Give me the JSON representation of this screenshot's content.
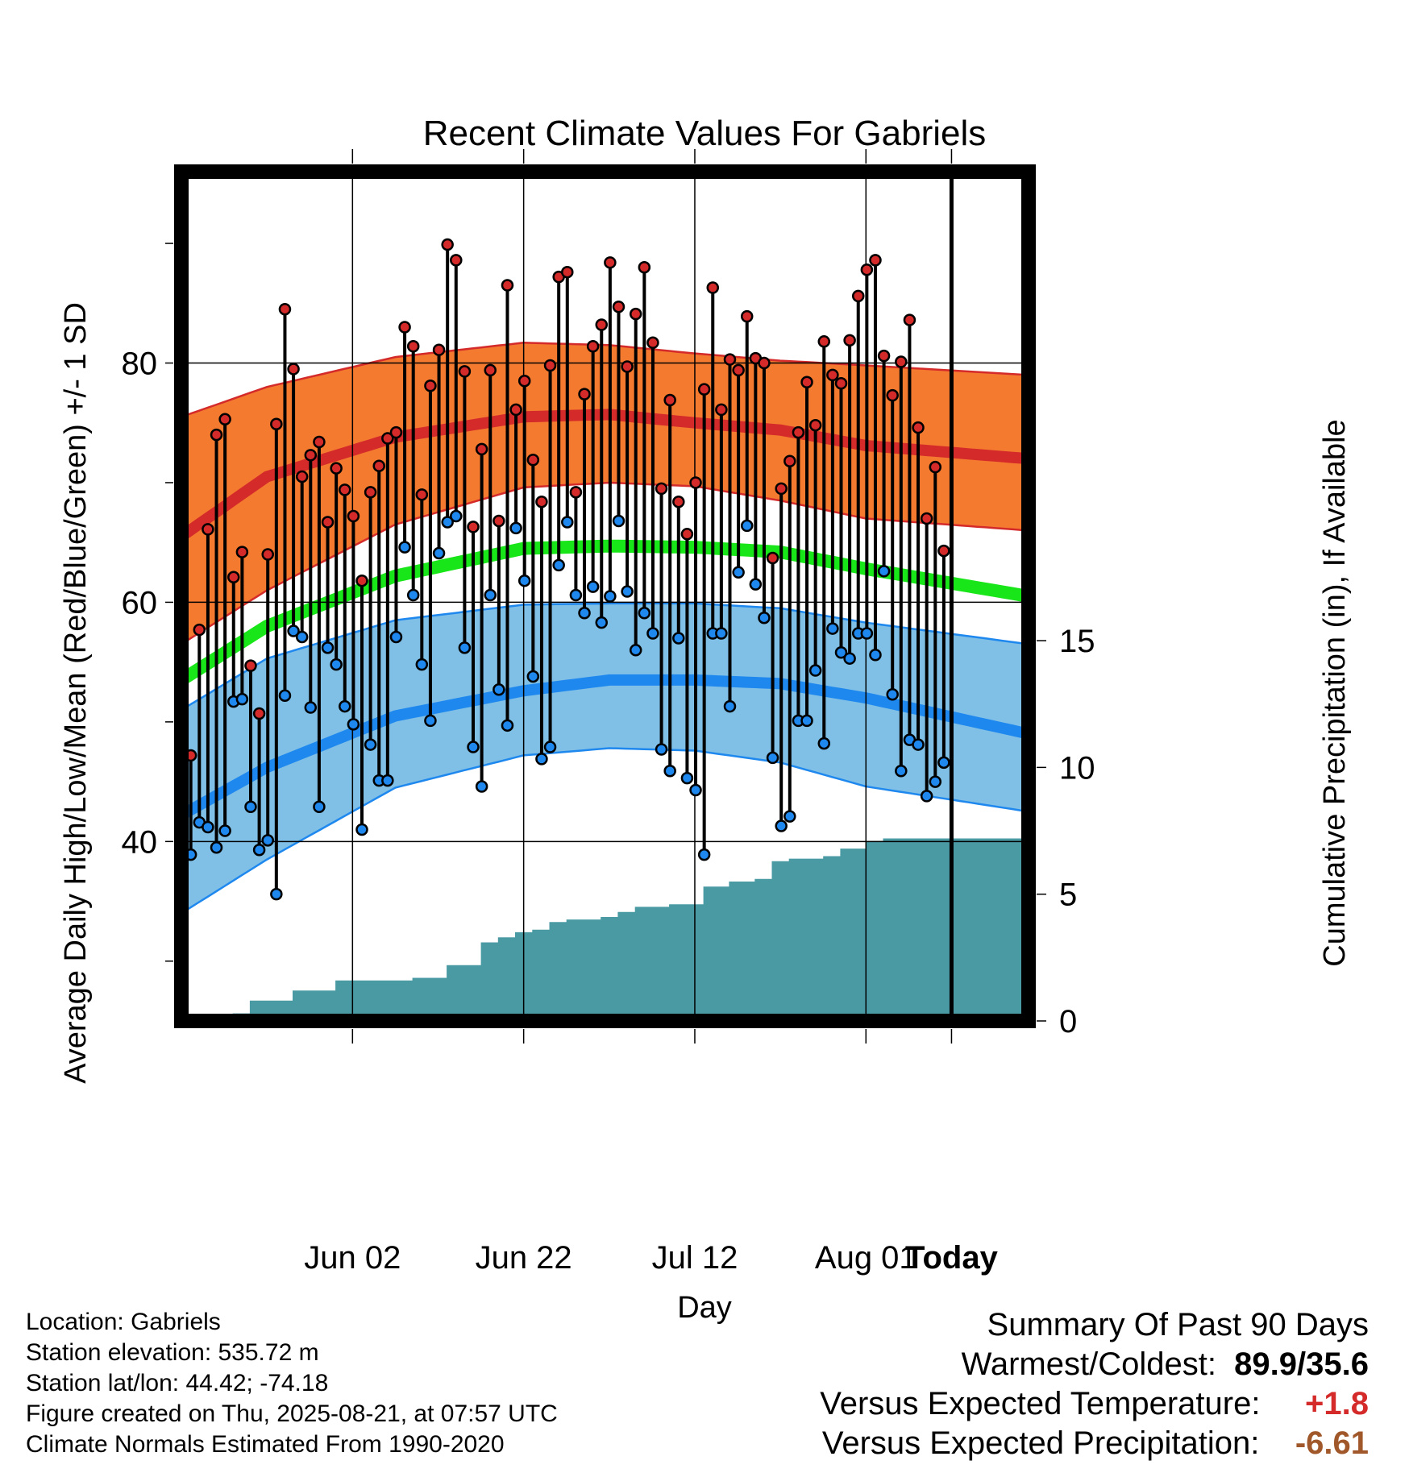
{
  "chart_data": {
    "type": "line",
    "title": "Recent Climate Values For Gabriels",
    "xlabel": "Day",
    "ylabel_left": "Average Daily High/Low/Mean (Red/Blue/Green) +/- 1 SD",
    "ylabel_right": "Cumulative Precipitation (in), If Available",
    "x_tick_labels": [
      "Jun 02",
      "Jun 22",
      "Jul 12",
      "Aug 01",
      "Today"
    ],
    "y_left_ticks": [
      40,
      60,
      80
    ],
    "y_left_range": [
      25,
      96
    ],
    "y_right_ticks": [
      0,
      5,
      10,
      15
    ],
    "y_right_range": [
      0,
      33.5
    ],
    "x_range_days": [
      -90,
      9
    ],
    "window_label": "90 Days",
    "colors": {
      "high_band": "#f47a30",
      "high_mean": "#d42a2a",
      "low_band": "#80c0e6",
      "low_mean": "#1e88ef",
      "mean": "#18e618",
      "precip": "#4a9aa4",
      "high_dot": "#d42a2a",
      "low_dot": "#1e88ef"
    },
    "normal_high": [
      65.5,
      70.5,
      73.8,
      75.5,
      75.7,
      75.0,
      74.4,
      73.1,
      72.0
    ],
    "normal_high_upper": [
      75.5,
      78.0,
      80.5,
      81.7,
      81.5,
      80.8,
      80.2,
      79.8,
      79.0
    ],
    "normal_high_lower": [
      56.5,
      61.0,
      66.5,
      69.6,
      70.0,
      69.7,
      68.5,
      67.0,
      66.0
    ],
    "normal_low": [
      42.2,
      46.2,
      50.5,
      52.6,
      53.5,
      53.5,
      53.2,
      52.0,
      49.0
    ],
    "normal_low_upper": [
      51.0,
      55.3,
      58.5,
      59.8,
      59.9,
      59.9,
      59.5,
      58.3,
      56.5
    ],
    "normal_low_lower": [
      34.0,
      38.5,
      44.5,
      47.2,
      47.8,
      47.6,
      46.6,
      44.6,
      42.5
    ],
    "normal_mean": [
      53.5,
      58.0,
      62.2,
      64.5,
      64.7,
      64.6,
      64.2,
      62.8,
      60.5
    ],
    "normal_x": [
      -90,
      -80,
      -65,
      -50,
      -40,
      -30,
      -20,
      -10,
      9
    ],
    "daily_high": [
      49.4,
      47.2,
      57.7,
      66.1,
      74.0,
      75.3,
      62.1,
      64.2,
      54.7,
      50.7,
      64.0,
      74.9,
      84.5,
      79.5,
      70.5,
      72.3,
      73.4,
      66.7,
      71.2,
      69.4,
      67.2,
      61.8,
      69.2,
      71.4,
      73.7,
      74.2,
      83.0,
      81.4,
      69.0,
      78.1,
      81.1,
      89.9,
      88.6,
      79.3,
      66.3,
      72.8,
      79.4,
      66.8,
      86.5,
      76.1,
      78.5,
      71.9,
      68.4,
      79.8,
      87.2,
      87.6,
      69.2,
      77.4,
      81.4,
      83.2,
      88.4,
      84.7,
      79.7,
      84.1,
      88.0,
      81.7,
      69.5,
      76.9,
      68.4,
      65.7,
      70.0,
      77.8,
      86.3,
      76.1,
      80.3,
      79.4,
      83.9,
      80.4,
      80.0,
      63.7,
      69.5,
      71.8,
      74.2,
      78.4,
      74.8,
      81.8,
      79.0,
      78.3,
      81.9,
      85.6,
      87.8,
      88.6,
      80.6,
      77.3,
      80.1,
      83.6,
      74.6,
      67.0,
      71.3,
      64.3
    ],
    "daily_low": [
      38.5,
      38.9,
      41.6,
      41.2,
      39.5,
      40.9,
      51.7,
      51.9,
      42.9,
      39.3,
      40.1,
      35.6,
      52.2,
      57.6,
      57.1,
      51.2,
      42.9,
      56.2,
      54.8,
      51.3,
      49.8,
      41.0,
      48.1,
      45.1,
      45.1,
      57.1,
      64.6,
      60.6,
      54.8,
      50.1,
      64.1,
      66.7,
      67.2,
      56.2,
      47.9,
      44.6,
      60.6,
      52.7,
      49.7,
      66.2,
      61.8,
      53.8,
      46.9,
      47.9,
      63.1,
      66.7,
      60.6,
      59.1,
      61.3,
      58.3,
      60.5,
      66.8,
      60.9,
      56.0,
      59.1,
      57.4,
      47.7,
      45.9,
      57.0,
      45.3,
      44.3,
      38.9,
      57.4,
      57.4,
      51.3,
      62.5,
      66.4,
      61.5,
      58.7,
      47.0,
      41.3,
      42.1,
      50.1,
      50.1,
      54.3,
      48.2,
      57.8,
      55.8,
      55.3,
      57.4,
      57.4,
      55.6,
      62.6,
      52.3,
      45.9,
      48.5,
      48.1,
      43.8,
      45.0,
      46.6
    ],
    "cumulative_precip_x": [
      -90,
      -86,
      -84,
      -82,
      -80,
      -77,
      -74,
      -72,
      -67,
      -63,
      -59,
      -55,
      -53,
      -51,
      -49,
      -47,
      -45,
      -43,
      -41,
      -39,
      -37,
      -33,
      -29,
      -26,
      -23,
      -21,
      -19,
      -17,
      -15,
      -13,
      -10,
      -8,
      -4,
      4,
      9
    ],
    "cumulative_precip": [
      0.1,
      0.1,
      0.3,
      0.8,
      0.8,
      1.2,
      1.2,
      1.6,
      1.6,
      1.7,
      2.2,
      3.1,
      3.3,
      3.5,
      3.6,
      3.9,
      4.0,
      4.0,
      4.1,
      4.3,
      4.5,
      4.6,
      5.3,
      5.5,
      5.6,
      6.3,
      6.4,
      6.4,
      6.5,
      6.8,
      7.1,
      7.2,
      7.2,
      7.2,
      7.2
    ]
  },
  "info": {
    "location": "Location: Gabriels",
    "elevation": "Station elevation: 535.72 m",
    "latlon": "Station lat/lon: 44.42; -74.18",
    "created": "Figure created on Thu, 2025-08-21, at 07:57 UTC",
    "normals": "Climate Normals Estimated From 1990-2020"
  },
  "summary": {
    "heading": "Summary Of Past 90 Days",
    "warm_cold_label": "Warmest/Coldest:",
    "warm_cold_value": "89.9/35.6",
    "temp_label": "Versus Expected Temperature:",
    "temp_value": "+1.8",
    "temp_color": "#d42a2a",
    "precip_label": "Versus Expected Precipitation:",
    "precip_value": "-6.61",
    "precip_color": "#a0582a"
  }
}
